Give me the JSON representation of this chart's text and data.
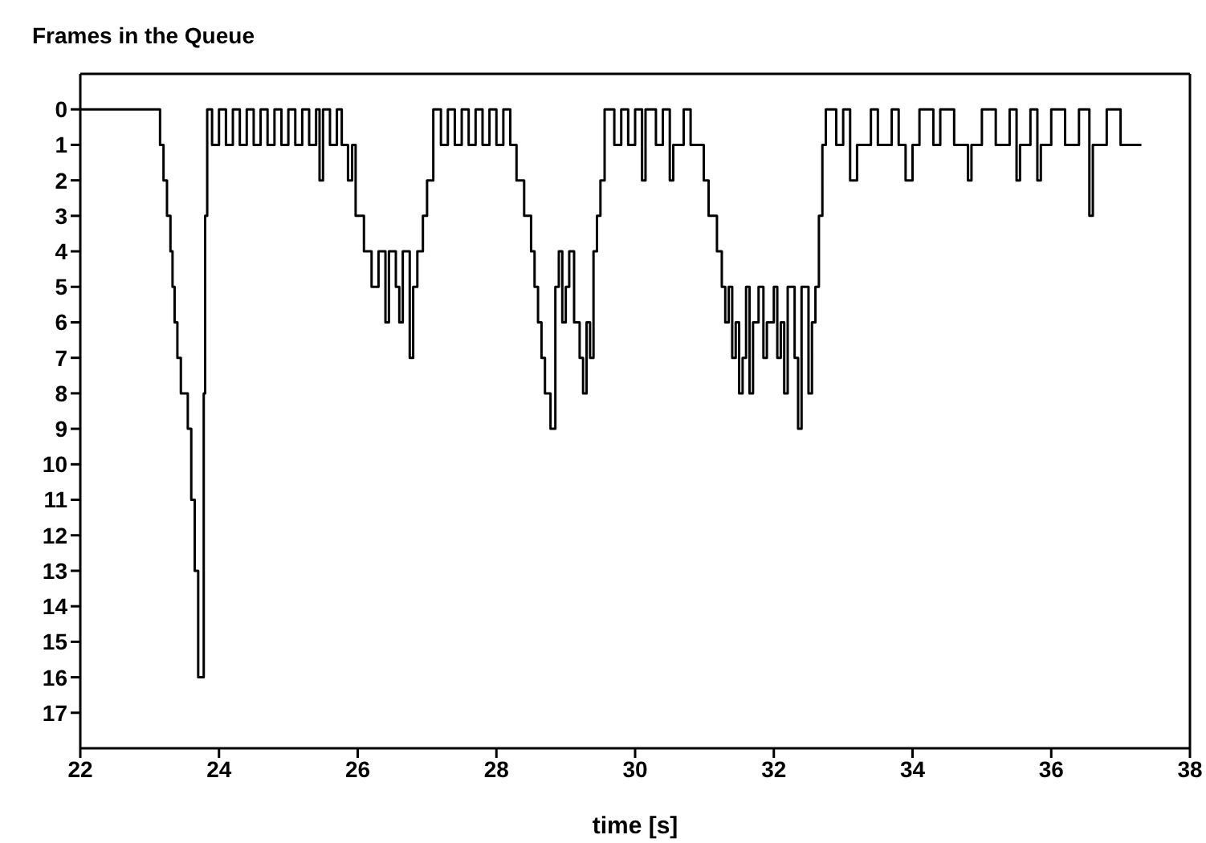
{
  "chart_data": {
    "type": "step",
    "title": "Frames in the Queue",
    "xlabel": "time [s]",
    "x": [
      22,
      23.15,
      23.2,
      23.25,
      23.3,
      23.33,
      23.36,
      23.4,
      23.45,
      23.55,
      23.6,
      23.65,
      23.7,
      23.78,
      23.8,
      23.83,
      23.9,
      24.0,
      24.1,
      24.2,
      24.3,
      24.4,
      24.5,
      24.6,
      24.7,
      24.8,
      24.9,
      25.0,
      25.1,
      25.2,
      25.3,
      25.4,
      25.45,
      25.5,
      25.6,
      25.7,
      25.77,
      25.86,
      25.92,
      25.97,
      26.09,
      26.2,
      26.3,
      26.4,
      26.45,
      26.55,
      26.6,
      26.65,
      26.75,
      26.8,
      26.86,
      26.94,
      27.0,
      27.09,
      27.2,
      27.3,
      27.4,
      27.5,
      27.6,
      27.7,
      27.8,
      27.9,
      28.0,
      28.1,
      28.2,
      28.29,
      28.4,
      28.5,
      28.55,
      28.6,
      28.65,
      28.7,
      28.78,
      28.85,
      28.9,
      28.95,
      29.0,
      29.05,
      29.12,
      29.2,
      29.25,
      29.3,
      29.35,
      29.4,
      29.45,
      29.5,
      29.56,
      29.7,
      29.8,
      29.9,
      30.0,
      30.1,
      30.15,
      30.3,
      30.4,
      30.5,
      30.55,
      30.7,
      30.8,
      30.99,
      31.06,
      31.18,
      31.25,
      31.3,
      31.35,
      31.4,
      31.45,
      31.5,
      31.55,
      31.6,
      31.65,
      31.7,
      31.78,
      31.85,
      31.9,
      32.0,
      32.05,
      32.1,
      32.15,
      32.2,
      32.3,
      32.35,
      32.4,
      32.5,
      32.55,
      32.6,
      32.65,
      32.7,
      32.75,
      32.9,
      33.0,
      33.1,
      33.2,
      33.4,
      33.5,
      33.7,
      33.8,
      33.9,
      34.0,
      34.1,
      34.3,
      34.4,
      34.6,
      34.8,
      34.85,
      35.0,
      35.2,
      35.4,
      35.5,
      35.55,
      35.7,
      35.8,
      35.85,
      36.0,
      36.2,
      36.4,
      36.55,
      36.6,
      36.8,
      37.0,
      37.3
    ],
    "values": [
      0,
      1,
      2,
      3,
      4,
      5,
      6,
      7,
      8,
      9,
      11,
      13,
      16,
      8,
      3,
      0,
      1,
      0,
      1,
      0,
      1,
      0,
      1,
      0,
      1,
      0,
      1,
      0,
      1,
      0,
      1,
      0,
      2,
      0,
      1,
      0,
      1,
      2,
      1,
      3,
      4,
      5,
      4,
      6,
      4,
      5,
      6,
      4,
      7,
      5,
      4,
      3,
      2,
      0,
      1,
      0,
      1,
      0,
      1,
      0,
      1,
      0,
      1,
      0,
      1,
      2,
      3,
      4,
      5,
      6,
      7,
      8,
      9,
      5,
      4,
      6,
      5,
      4,
      6,
      7,
      8,
      6,
      7,
      4,
      3,
      2,
      0,
      1,
      0,
      1,
      0,
      2,
      0,
      1,
      0,
      2,
      1,
      0,
      1,
      2,
      3,
      4,
      5,
      6,
      5,
      7,
      6,
      8,
      7,
      5,
      8,
      6,
      5,
      7,
      6,
      5,
      7,
      6,
      8,
      5,
      7,
      9,
      5,
      8,
      6,
      5,
      3,
      1,
      0,
      1,
      0,
      2,
      1,
      0,
      1,
      0,
      1,
      2,
      1,
      0,
      1,
      0,
      1,
      2,
      1,
      0,
      1,
      0,
      2,
      1,
      0,
      2,
      1,
      0,
      1,
      0,
      3,
      1,
      0,
      1,
      1
    ],
    "color": "#000000",
    "xlim": [
      22,
      38
    ],
    "xticks": [
      22,
      24,
      26,
      28,
      30,
      32,
      34,
      36,
      38
    ],
    "ylim": [
      18,
      -1
    ],
    "yticks": [
      0,
      1,
      2,
      3,
      4,
      5,
      6,
      7,
      8,
      9,
      10,
      11,
      12,
      13,
      14,
      15,
      16,
      17
    ],
    "grid": false,
    "legend": false,
    "marker": "none",
    "line_style": "solid"
  }
}
